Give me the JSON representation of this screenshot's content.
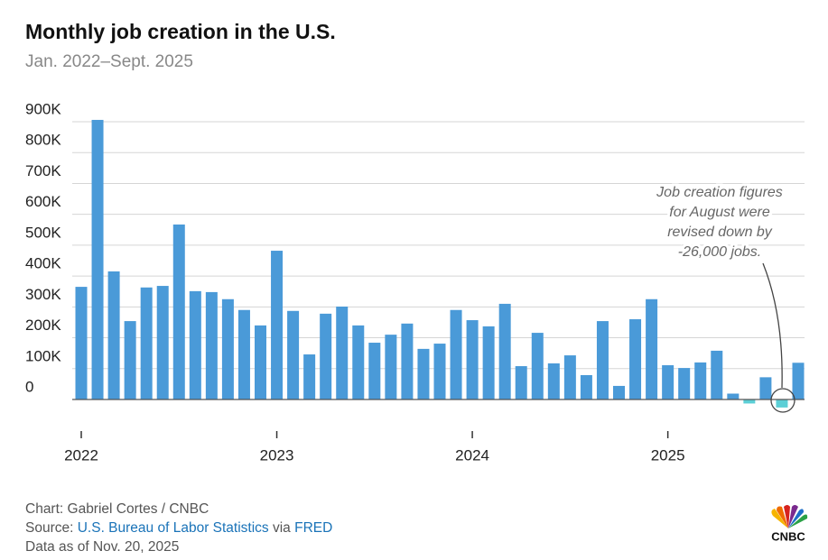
{
  "chart_data": {
    "type": "bar",
    "title": "Monthly job creation in the U.S.",
    "subtitle": "Jan. 2022–Sept. 2025",
    "categories": [
      "2022",
      null,
      null,
      null,
      null,
      null,
      null,
      null,
      null,
      null,
      null,
      null,
      "2023",
      null,
      null,
      null,
      null,
      null,
      null,
      null,
      null,
      null,
      null,
      null,
      "2024",
      null,
      null,
      null,
      null,
      null,
      null,
      null,
      null,
      null,
      null,
      null,
      "2025",
      null,
      null,
      null,
      null,
      null,
      null,
      null,
      null
    ],
    "values": [
      365000,
      906000,
      415000,
      254000,
      363000,
      368000,
      567000,
      351000,
      348000,
      325000,
      290000,
      240000,
      482000,
      287000,
      146000,
      278000,
      301000,
      240000,
      184000,
      210000,
      246000,
      164000,
      181000,
      290000,
      257000,
      237000,
      310000,
      108000,
      216000,
      117000,
      143000,
      79000,
      254000,
      44000,
      260000,
      325000,
      111000,
      102000,
      120000,
      158000,
      19000,
      -13000,
      72000,
      -26000,
      119000
    ],
    "color": "#4a9ad8",
    "negative_color": "#5ccfd6",
    "ylim": [
      -100000,
      900000
    ],
    "yticks": [
      {
        "value": 0,
        "label": "0"
      },
      {
        "value": 100000,
        "label": "100K"
      },
      {
        "value": 200000,
        "label": "200K"
      },
      {
        "value": 300000,
        "label": "300K"
      },
      {
        "value": 400000,
        "label": "400K"
      },
      {
        "value": 500000,
        "label": "500K"
      },
      {
        "value": 600000,
        "label": "600K"
      },
      {
        "value": 700000,
        "label": "700K"
      },
      {
        "value": 800000,
        "label": "800K"
      },
      {
        "value": 900000,
        "label": "900K"
      }
    ],
    "grid": true,
    "annotation": [
      "Job creation figures",
      "for August were",
      "revised down by",
      "-26,000 jobs."
    ],
    "credit": "Chart: Gabriel Cortes / CNBC",
    "source_prefix": "Source:",
    "source": "U.S. Bureau of Labor Statistics",
    "source_via": "via",
    "source2": "FRED",
    "date_note": "Data as of Nov. 20, 2025",
    "logo": "CNBC"
  }
}
